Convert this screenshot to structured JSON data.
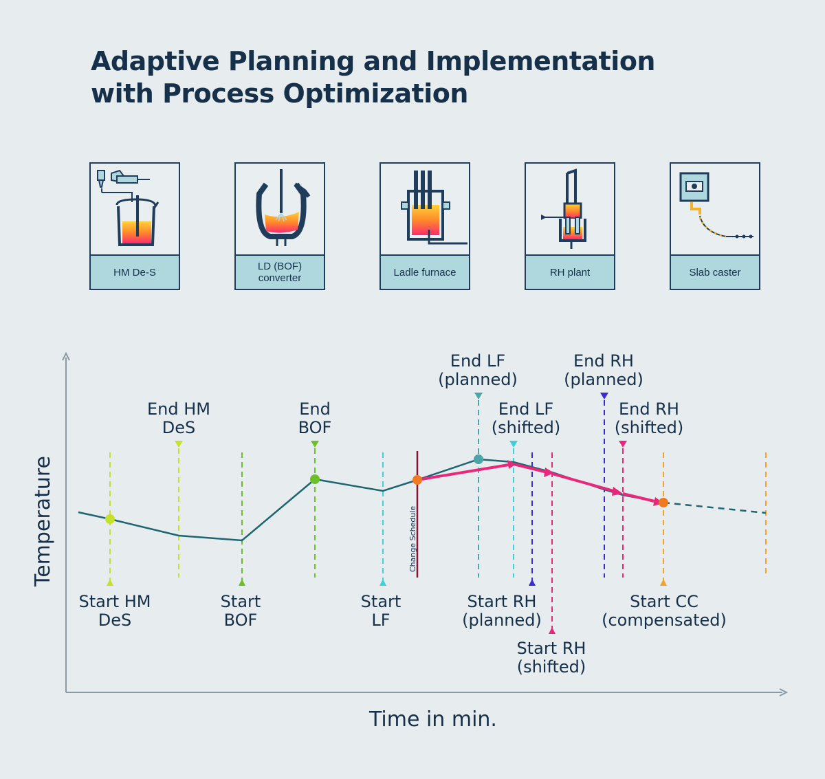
{
  "title": {
    "line1": "Adaptive Planning and Implementation",
    "line2": "with Process Optimization"
  },
  "stations": [
    {
      "label": "HM De-S",
      "icon": "hm-desulfurization-icon"
    },
    {
      "label": "LD (BOF)\nconverter",
      "icon": "bof-converter-icon"
    },
    {
      "label": "Ladle furnace",
      "icon": "ladle-furnace-icon"
    },
    {
      "label": "RH plant",
      "icon": "rh-plant-icon"
    },
    {
      "label": "Slab caster",
      "icon": "slab-caster-icon"
    }
  ],
  "axes": {
    "y_label": "Temperature",
    "x_label": "Time in min."
  },
  "change_label": "Change Schedule",
  "colors": {
    "background": "#e7ecee",
    "text": "#16304a",
    "temperature_line": "#1d6570",
    "shifted_path": "#e8287a",
    "hm_des": "#c6e12a",
    "bof": "#6dbf2a",
    "lf": "#3fd1da",
    "lf_planned": "#4aa6a6",
    "rh_planned": "#3a2bd6",
    "rh_shifted": "#e8287a",
    "cc": "#f2a32a",
    "change_schedule": "#8a1434",
    "card_label_bg": "#aed7de"
  },
  "events": [
    {
      "id": "start-hm-des",
      "label": [
        "Start HM",
        "DeS"
      ],
      "color": "#c6e12a",
      "style": "solid-dash",
      "pos": "below"
    },
    {
      "id": "end-hm-des",
      "label": [
        "End HM",
        "DeS"
      ],
      "color": "#c6e12a",
      "pos": "above"
    },
    {
      "id": "start-bof",
      "label": [
        "Start",
        "BOF"
      ],
      "color": "#6dbf2a",
      "pos": "below"
    },
    {
      "id": "end-bof",
      "label": [
        "End",
        "BOF"
      ],
      "color": "#6dbf2a",
      "pos": "above"
    },
    {
      "id": "start-lf",
      "label": [
        "Start",
        "LF"
      ],
      "color": "#3fd1da",
      "pos": "below"
    },
    {
      "id": "end-lf-planned",
      "label": [
        "End LF",
        "(planned)"
      ],
      "color": "#4aa6a6",
      "pos": "above"
    },
    {
      "id": "end-lf-shifted",
      "label": [
        "End LF",
        "(shifted)"
      ],
      "color": "#3fd1da",
      "pos": "above"
    },
    {
      "id": "start-rh-planned",
      "label": [
        "Start RH",
        "(planned)"
      ],
      "color": "#3a2bd6",
      "pos": "below"
    },
    {
      "id": "start-rh-shifted",
      "label": [
        "Start RH",
        "(shifted)"
      ],
      "color": "#e8287a",
      "pos": "below"
    },
    {
      "id": "end-rh-planned",
      "label": [
        "End RH",
        "(planned)"
      ],
      "color": "#3a2bd6",
      "pos": "above"
    },
    {
      "id": "end-rh-shifted",
      "label": [
        "End RH",
        "(shifted)"
      ],
      "color": "#e8287a",
      "pos": "above"
    },
    {
      "id": "start-cc",
      "label": [
        "Start CC",
        "(compensated)"
      ],
      "color": "#f2a32a",
      "pos": "below"
    }
  ]
}
